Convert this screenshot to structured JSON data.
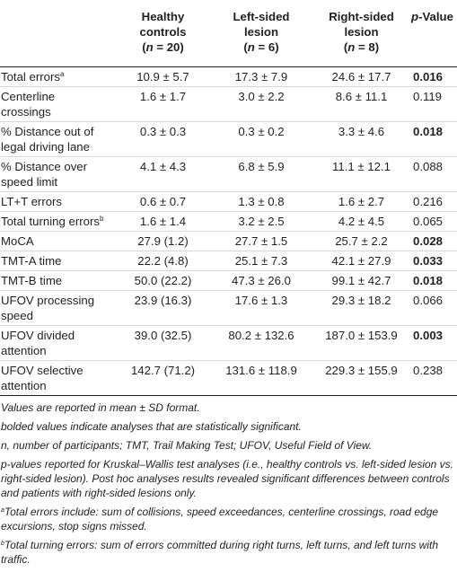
{
  "header": {
    "col1": {
      "l1": "Healthy",
      "l2": "controls",
      "n": "(n = 20)"
    },
    "col2": {
      "l1": "Left-sided",
      "l2": "lesion",
      "n": "(n = 6)"
    },
    "col3": {
      "l1": "Right-sided",
      "l2": "lesion",
      "n": "(n = 8)"
    },
    "pval": {
      "p": "p",
      "rest": "-Value"
    }
  },
  "rows": [
    {
      "label": "Total errors",
      "sup": "a",
      "c1": "10.9 ± 5.7",
      "c2": "17.3 ± 7.9",
      "c3": "24.6 ± 17.7",
      "p": "0.016",
      "sig": true
    },
    {
      "label": "Centerline",
      "label2": "crossings",
      "c1": "1.6 ± 1.7",
      "c2": "3.0 ± 2.2",
      "c3": "8.6 ± 11.1",
      "p": "0.119",
      "sig": false
    },
    {
      "label": "% Distance out of",
      "label2": "legal driving lane",
      "c1": "0.3 ± 0.3",
      "c2": "0.3 ± 0.2",
      "c3": "3.3 ± 4.6",
      "p": "0.018",
      "sig": true
    },
    {
      "label": "% Distance over",
      "label2": "speed limit",
      "c1": "4.1 ± 4.3",
      "c2": "6.8 ± 5.9",
      "c3": "11.1 ± 12.1",
      "p": "0.088",
      "sig": false
    },
    {
      "label": "LT+T errors",
      "c1": "0.6 ± 0.7",
      "c2": "1.3 ± 0.8",
      "c3": "1.6 ± 2.7",
      "p": "0.216",
      "sig": false
    },
    {
      "label": "Total turning errors",
      "sup": "b",
      "c1": "1.6 ± 1.4",
      "c2": "3.2 ± 2.5",
      "c3": "4.2 ± 4.5",
      "p": "0.065",
      "sig": false
    },
    {
      "label": "MoCA",
      "c1": "27.9 (1.2)",
      "c2": "27.7 ± 1.5",
      "c3": "25.7 ± 2.2",
      "p": "0.028",
      "sig": true
    },
    {
      "label": "TMT-A time",
      "c1": "22.2 (4.8)",
      "c2": "25.1 ± 7.3",
      "c3": "42.1 ± 27.9",
      "p": "0.033",
      "sig": true
    },
    {
      "label": "TMT-B time",
      "c1": "50.0 (22.2)",
      "c2": "47.3 ± 26.0",
      "c3": "99.1 ± 42.7",
      "p": "0.018",
      "sig": true
    },
    {
      "label": "UFOV processing",
      "label2": "speed",
      "c1": "23.9 (16.3)",
      "c2": "17.6 ± 1.3",
      "c3": "29.3 ± 18.2",
      "p": "0.066",
      "sig": false
    },
    {
      "label": "UFOV divided",
      "label2": "attention",
      "c1": "39.0 (32.5)",
      "c2": "80.2 ± 132.6",
      "c3": "187.0 ± 153.9",
      "p": "0.003",
      "sig": true
    },
    {
      "label": "UFOV selective",
      "label2": "attention",
      "c1": "142.7 (71.2)",
      "c2": "131.6 ± 118.9",
      "c3": "229.3 ± 155.9",
      "p": "0.238",
      "sig": false
    }
  ],
  "notes": {
    "n1": "Values are reported in mean ± SD format.",
    "n2": "bolded values indicate analyses that are statistically significant.",
    "n3": "n, number of participants; TMT, Trail Making Test; UFOV, Useful Field of View.",
    "n4": "p-values reported for Kruskal–Wallis test analyses (i.e., healthy controls vs. left-sided lesion vs. right-sided lesion). Post hoc analyses results revealed significant differences between controls and patients with right-sided lesions only.",
    "n5_sup": "a",
    "n5": "Total errors include: sum of collisions, speed exceedances, centerline crossings, road edge excursions, stop signs missed.",
    "n6_sup": "b",
    "n6": "Total turning errors: sum of errors committed during right turns, left turns, and left turns with traffic."
  }
}
